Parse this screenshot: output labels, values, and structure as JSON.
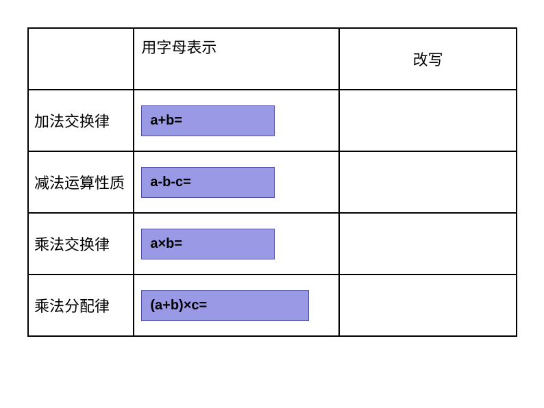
{
  "table": {
    "header": {
      "col2": "用字母表示",
      "col3": "改写"
    },
    "rows": [
      {
        "label": "加法交换律",
        "formula": "a+b=",
        "box_size": "small"
      },
      {
        "label": "减法运算性质",
        "formula": "a-b-c=",
        "box_size": "small"
      },
      {
        "label": "乘法交换律",
        "formula": "a×b=",
        "box_size": "small"
      },
      {
        "label": "乘法分配律",
        "formula": "(a+b)×c=",
        "box_size": "large"
      }
    ],
    "styling": {
      "formula_box_bg": "#9999e6",
      "formula_box_border": "#5050a0",
      "table_border_color": "#000000",
      "font_size_label": 22,
      "font_size_formula": 20
    }
  }
}
